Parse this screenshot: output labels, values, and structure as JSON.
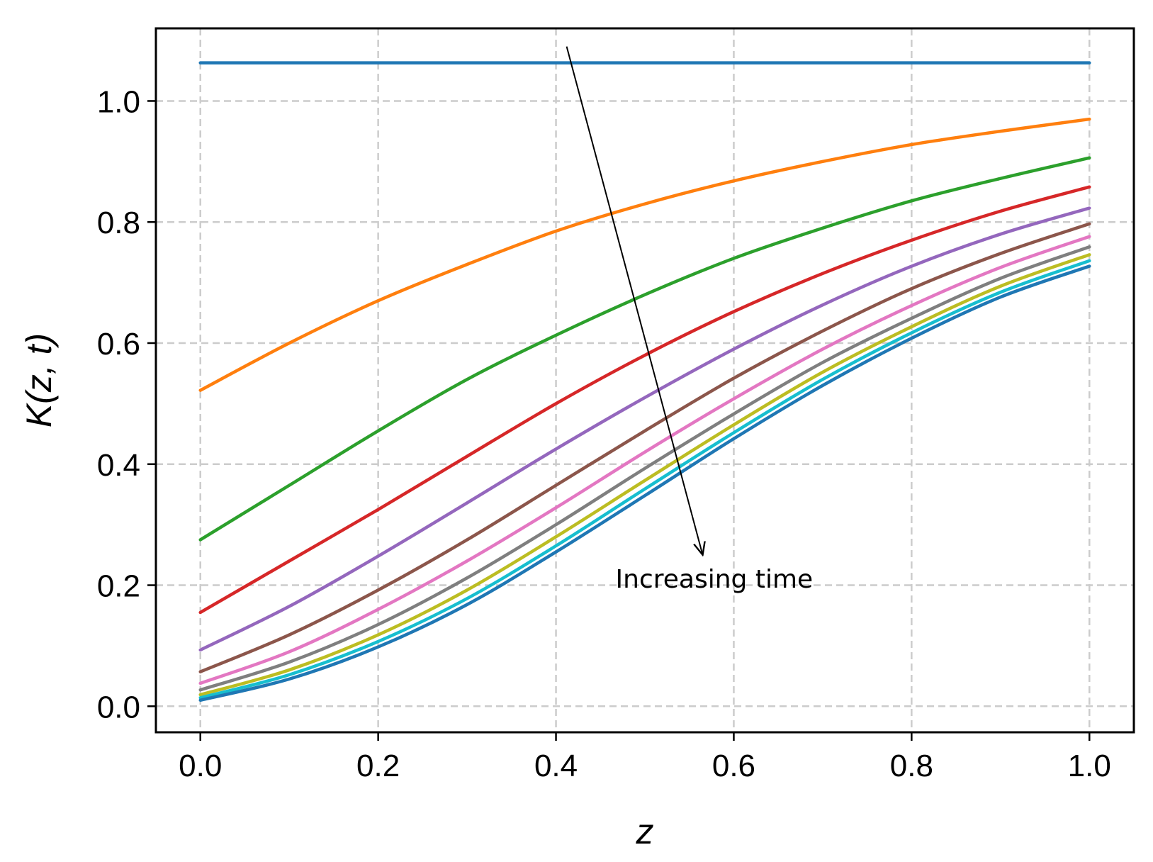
{
  "chart_data": {
    "type": "line",
    "xlabel": "z",
    "ylabel": "K(z, t)",
    "xlim": [
      -0.05,
      1.05
    ],
    "ylim": [
      -0.043,
      1.12
    ],
    "xticks": [
      "0.0",
      "0.2",
      "0.4",
      "0.6",
      "0.8",
      "1.0"
    ],
    "yticks": [
      "0.0",
      "0.2",
      "0.4",
      "0.6",
      "0.8",
      "1.0"
    ],
    "grid": true,
    "annotation": {
      "text": "Increasing time",
      "x": 0.578,
      "y": 0.21,
      "arrow_from": [
        0.412,
        1.09
      ],
      "arrow_to": [
        0.565,
        0.25
      ]
    },
    "x": [
      0.0,
      0.1,
      0.2,
      0.3,
      0.4,
      0.5,
      0.6,
      0.7,
      0.8,
      0.9,
      1.0
    ],
    "series": [
      {
        "color": "#1f77b4",
        "values": [
          1.063,
          1.063,
          1.063,
          1.063,
          1.063,
          1.063,
          1.063,
          1.063,
          1.063,
          1.063,
          1.063
        ]
      },
      {
        "color": "#ff7f0e",
        "values": [
          0.522,
          0.6,
          0.67,
          0.73,
          0.785,
          0.83,
          0.868,
          0.9,
          0.928,
          0.95,
          0.97
        ]
      },
      {
        "color": "#2ca02c",
        "values": [
          0.275,
          0.365,
          0.455,
          0.54,
          0.613,
          0.68,
          0.74,
          0.79,
          0.835,
          0.872,
          0.906
        ]
      },
      {
        "color": "#d62728",
        "values": [
          0.155,
          0.24,
          0.325,
          0.413,
          0.5,
          0.58,
          0.652,
          0.715,
          0.77,
          0.818,
          0.858
        ]
      },
      {
        "color": "#9467bd",
        "values": [
          0.093,
          0.165,
          0.248,
          0.336,
          0.425,
          0.51,
          0.59,
          0.663,
          0.727,
          0.78,
          0.823
        ]
      },
      {
        "color": "#8c564b",
        "values": [
          0.057,
          0.118,
          0.192,
          0.275,
          0.365,
          0.455,
          0.542,
          0.62,
          0.69,
          0.748,
          0.797
        ]
      },
      {
        "color": "#e377c2",
        "values": [
          0.038,
          0.09,
          0.16,
          0.24,
          0.328,
          0.42,
          0.508,
          0.59,
          0.662,
          0.725,
          0.776
        ]
      },
      {
        "color": "#7f7f7f",
        "values": [
          0.027,
          0.073,
          0.135,
          0.212,
          0.3,
          0.393,
          0.483,
          0.568,
          0.641,
          0.707,
          0.759
        ]
      },
      {
        "color": "#bcbd22",
        "values": [
          0.019,
          0.06,
          0.118,
          0.192,
          0.28,
          0.373,
          0.465,
          0.552,
          0.627,
          0.694,
          0.746
        ]
      },
      {
        "color": "#17becf",
        "values": [
          0.014,
          0.052,
          0.107,
          0.178,
          0.265,
          0.359,
          0.452,
          0.54,
          0.617,
          0.684,
          0.736
        ]
      },
      {
        "color": "#1f77b4",
        "values": [
          0.01,
          0.045,
          0.098,
          0.168,
          0.255,
          0.348,
          0.442,
          0.53,
          0.608,
          0.676,
          0.727
        ]
      }
    ]
  }
}
